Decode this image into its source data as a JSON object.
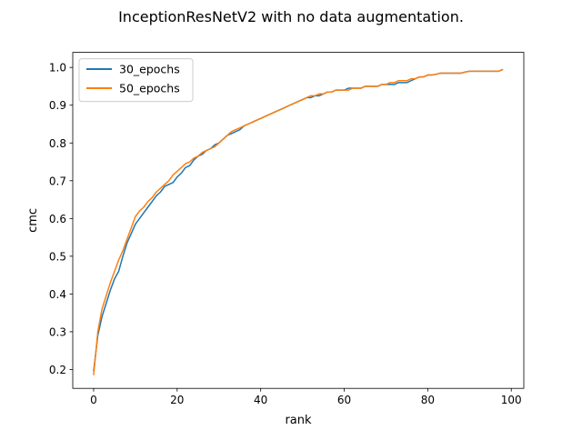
{
  "chart_data": {
    "type": "line",
    "title": "InceptionResNetV2 with no data augmentation.",
    "xlabel": "rank",
    "ylabel": "cmc",
    "xlim": [
      -5,
      103
    ],
    "ylim": [
      0.15,
      1.04
    ],
    "xticks": [
      0,
      20,
      40,
      60,
      80,
      100
    ],
    "xtick_labels": [
      "0",
      "20",
      "40",
      "60",
      "80",
      "100"
    ],
    "yticks": [
      0.2,
      0.3,
      0.4,
      0.5,
      0.6,
      0.7,
      0.8,
      0.9,
      1.0
    ],
    "ytick_labels": [
      "0.2",
      "0.3",
      "0.4",
      "0.5",
      "0.6",
      "0.7",
      "0.8",
      "0.9",
      "1.0"
    ],
    "grid": false,
    "legend_position": "upper-left",
    "x_start": 0,
    "series": [
      {
        "name": "30_epochs",
        "color": "#1f77b4",
        "values": [
          0.195,
          0.29,
          0.34,
          0.375,
          0.41,
          0.44,
          0.46,
          0.5,
          0.535,
          0.56,
          0.585,
          0.6,
          0.615,
          0.63,
          0.645,
          0.66,
          0.67,
          0.685,
          0.69,
          0.695,
          0.71,
          0.72,
          0.735,
          0.74,
          0.755,
          0.765,
          0.77,
          0.78,
          0.785,
          0.795,
          0.8,
          0.81,
          0.82,
          0.825,
          0.83,
          0.835,
          0.845,
          0.85,
          0.855,
          0.86,
          0.865,
          0.87,
          0.875,
          0.88,
          0.885,
          0.89,
          0.895,
          0.9,
          0.905,
          0.91,
          0.915,
          0.92,
          0.92,
          0.925,
          0.925,
          0.93,
          0.935,
          0.935,
          0.94,
          0.94,
          0.94,
          0.945,
          0.945,
          0.945,
          0.945,
          0.95,
          0.95,
          0.95,
          0.95,
          0.955,
          0.955,
          0.955,
          0.955,
          0.96,
          0.96,
          0.96,
          0.965,
          0.97,
          0.975,
          0.975,
          0.98,
          0.98,
          0.982,
          0.985,
          0.985,
          0.985,
          0.985,
          0.985,
          0.985,
          0.988,
          0.99,
          0.99,
          0.99,
          0.99,
          0.99,
          0.99,
          0.99,
          0.99,
          0.995
        ]
      },
      {
        "name": "50_epochs",
        "color": "#ff7f0e",
        "values": [
          0.185,
          0.3,
          0.36,
          0.395,
          0.43,
          0.46,
          0.49,
          0.515,
          0.545,
          0.575,
          0.605,
          0.62,
          0.63,
          0.645,
          0.655,
          0.67,
          0.68,
          0.69,
          0.7,
          0.715,
          0.725,
          0.735,
          0.745,
          0.75,
          0.76,
          0.765,
          0.775,
          0.78,
          0.785,
          0.79,
          0.8,
          0.81,
          0.82,
          0.83,
          0.835,
          0.84,
          0.845,
          0.85,
          0.855,
          0.86,
          0.865,
          0.87,
          0.875,
          0.88,
          0.885,
          0.89,
          0.895,
          0.9,
          0.905,
          0.91,
          0.915,
          0.92,
          0.925,
          0.925,
          0.93,
          0.93,
          0.935,
          0.935,
          0.94,
          0.94,
          0.94,
          0.94,
          0.945,
          0.945,
          0.945,
          0.95,
          0.95,
          0.95,
          0.95,
          0.955,
          0.955,
          0.96,
          0.96,
          0.965,
          0.965,
          0.965,
          0.97,
          0.97,
          0.975,
          0.975,
          0.98,
          0.98,
          0.982,
          0.985,
          0.985,
          0.985,
          0.985,
          0.985,
          0.985,
          0.988,
          0.99,
          0.99,
          0.99,
          0.99,
          0.99,
          0.99,
          0.99,
          0.99,
          0.995
        ]
      }
    ]
  }
}
